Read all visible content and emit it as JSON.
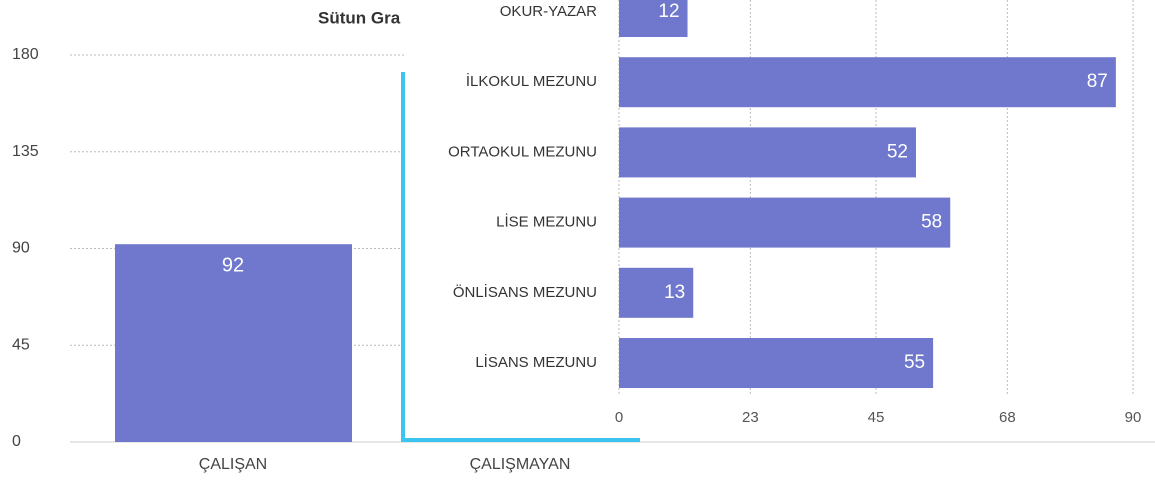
{
  "chart_data": [
    {
      "type": "bar",
      "title": "Sütun Gra",
      "categories": [
        "ÇALIŞAN",
        "ÇALIŞMAYAN"
      ],
      "values": [
        92,
        null
      ],
      "color": "#6f78cc",
      "ylim": [
        0,
        180
      ],
      "yticks": [
        0,
        45,
        90,
        135,
        180
      ],
      "grid": true
    },
    {
      "type": "barh",
      "categories": [
        "OKUR-YAZAR",
        "İLKOKUL MEZUNU",
        "ORTAOKUL MEZUNU",
        "LİSE MEZUNU",
        "ÖNLİSANS MEZUNU",
        "LİSANS MEZUNU"
      ],
      "values": [
        12,
        87,
        52,
        58,
        13,
        55
      ],
      "color": "#6f78cc",
      "xlim": [
        0,
        90
      ],
      "xticks": [
        0,
        23,
        45,
        68,
        90
      ],
      "grid": true
    }
  ]
}
